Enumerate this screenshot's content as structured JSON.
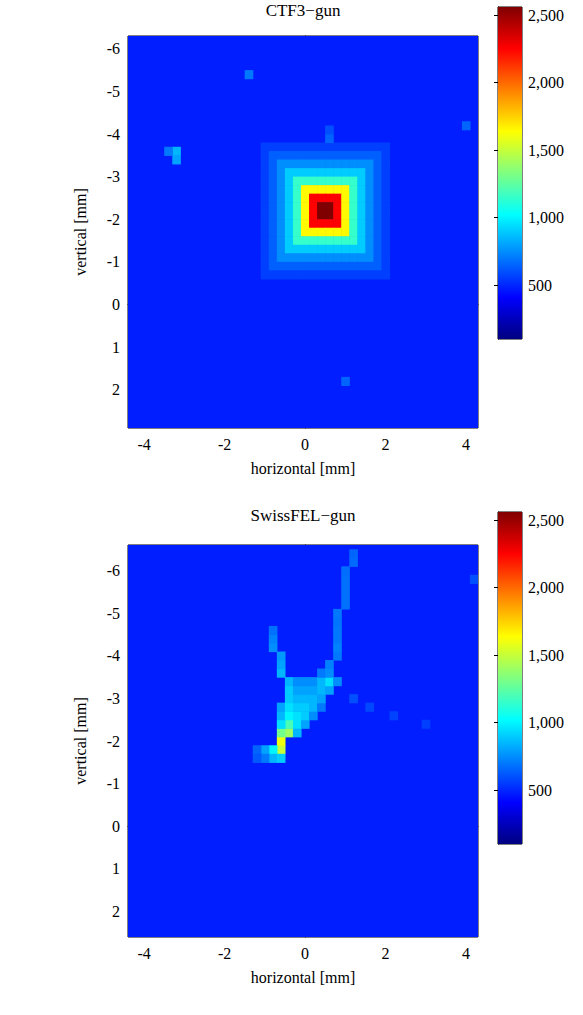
{
  "chart_data": [
    {
      "type": "heatmap",
      "title": "CTF3−gun",
      "xlabel": "horizontal [mm]",
      "ylabel": "vertical [mm]",
      "xlim": [
        -4.4,
        4.3
      ],
      "ylim": [
        2.9,
        -6.3
      ],
      "xticks": [
        -4,
        -2,
        0,
        2,
        4
      ],
      "yticks": [
        -6,
        -5,
        -4,
        -3,
        -2,
        -1,
        0,
        1,
        2
      ],
      "background": 480,
      "cell_size": 0.2,
      "x": [
        -1.0,
        -0.8,
        -0.6,
        -0.4,
        -0.2,
        0.0,
        0.2,
        0.4,
        0.6,
        0.8,
        1.0,
        1.2,
        1.4,
        1.6,
        1.8,
        2.0
      ],
      "y": [
        -3.7,
        -3.5,
        -3.3,
        -3.1,
        -2.9,
        -2.7,
        -2.5,
        -2.3,
        -2.1,
        -1.9,
        -1.7,
        -1.5,
        -1.3,
        -1.1,
        -0.9,
        -0.7
      ],
      "z": [
        [
          560,
          560,
          560,
          560,
          560,
          560,
          560,
          560,
          560,
          560,
          560,
          560,
          560,
          560,
          560,
          560
        ],
        [
          560,
          640,
          640,
          640,
          640,
          640,
          640,
          640,
          640,
          640,
          640,
          640,
          640,
          640,
          640,
          560
        ],
        [
          560,
          640,
          750,
          750,
          750,
          750,
          750,
          750,
          750,
          750,
          750,
          750,
          750,
          750,
          640,
          560
        ],
        [
          560,
          640,
          750,
          900,
          900,
          900,
          900,
          900,
          900,
          900,
          900,
          900,
          900,
          750,
          640,
          560
        ],
        [
          560,
          640,
          750,
          900,
          1150,
          1150,
          1150,
          1150,
          1150,
          1150,
          1150,
          1150,
          900,
          750,
          640,
          560
        ],
        [
          560,
          640,
          750,
          900,
          1150,
          1650,
          1650,
          1650,
          1650,
          1650,
          1650,
          1150,
          900,
          750,
          640,
          560
        ],
        [
          560,
          640,
          750,
          900,
          1150,
          1650,
          2250,
          2250,
          2250,
          2250,
          1650,
          1150,
          900,
          750,
          640,
          560
        ],
        [
          560,
          640,
          750,
          900,
          1150,
          1650,
          2250,
          2560,
          2560,
          2250,
          1650,
          1150,
          900,
          750,
          640,
          560
        ],
        [
          560,
          640,
          750,
          900,
          1150,
          1650,
          2250,
          2560,
          2560,
          2250,
          1650,
          1150,
          900,
          750,
          640,
          560
        ],
        [
          560,
          640,
          750,
          900,
          1150,
          1650,
          2250,
          2250,
          2250,
          2250,
          1650,
          1150,
          900,
          750,
          640,
          560
        ],
        [
          560,
          640,
          750,
          900,
          1150,
          1650,
          1650,
          1650,
          1650,
          1650,
          1650,
          1150,
          900,
          750,
          640,
          560
        ],
        [
          560,
          640,
          750,
          900,
          1150,
          1150,
          1150,
          1150,
          1150,
          1150,
          1150,
          1150,
          900,
          750,
          640,
          560
        ],
        [
          560,
          640,
          750,
          900,
          900,
          900,
          900,
          900,
          900,
          900,
          900,
          900,
          900,
          750,
          640,
          560
        ],
        [
          560,
          640,
          750,
          750,
          750,
          750,
          750,
          750,
          750,
          750,
          750,
          750,
          750,
          750,
          640,
          560
        ],
        [
          560,
          640,
          640,
          640,
          640,
          640,
          640,
          640,
          640,
          640,
          640,
          640,
          640,
          640,
          640,
          560
        ],
        [
          560,
          560,
          560,
          560,
          560,
          560,
          560,
          560,
          560,
          560,
          560,
          560,
          560,
          560,
          560,
          560
        ]
      ],
      "cells": [
        [
          -3.2,
          -3.6,
          850
        ],
        [
          -3.2,
          -3.4,
          800
        ],
        [
          -3.4,
          -3.6,
          700
        ],
        [
          -1.4,
          -5.4,
          700
        ],
        [
          4.0,
          -4.2,
          650
        ],
        [
          1.0,
          1.8,
          650
        ],
        [
          0.6,
          -3.9,
          650
        ],
        [
          0.6,
          -4.1,
          600
        ]
      ],
      "colorbar": {
        "range": [
          100,
          2560
        ],
        "ticks": [
          500,
          1000,
          1500,
          2000,
          2500
        ]
      }
    },
    {
      "type": "heatmap",
      "title": "SwissFEL−gun",
      "xlabel": "horizontal [mm]",
      "ylabel": "vertical [mm]",
      "xlim": [
        -4.4,
        4.3
      ],
      "ylim": [
        2.6,
        -6.6
      ],
      "xticks": [
        -4,
        -2,
        0,
        2,
        4
      ],
      "yticks": [
        -6,
        -5,
        -4,
        -3,
        -2,
        -1,
        0,
        1,
        2
      ],
      "background": 480,
      "cell_size": 0.2,
      "cells": [
        [
          -0.6,
          -1.8,
          1500
        ],
        [
          -0.6,
          -2.0,
          1600
        ],
        [
          -0.4,
          -2.2,
          1400
        ],
        [
          -0.4,
          -2.4,
          1200
        ],
        [
          -0.8,
          -1.8,
          1000
        ],
        [
          -0.8,
          -1.6,
          850
        ],
        [
          -1.0,
          -1.8,
          800
        ],
        [
          -1.0,
          -1.6,
          700
        ],
        [
          -1.2,
          -1.8,
          650
        ],
        [
          -0.6,
          -1.6,
          900
        ],
        [
          -1.2,
          -1.6,
          620
        ],
        [
          -0.6,
          -2.2,
          1300
        ],
        [
          -0.2,
          -2.2,
          850
        ],
        [
          -0.6,
          -2.4,
          950
        ],
        [
          -0.2,
          -2.4,
          950
        ],
        [
          0.0,
          -2.4,
          800
        ],
        [
          -0.6,
          -2.6,
          850
        ],
        [
          -0.4,
          -2.6,
          1000
        ],
        [
          -0.2,
          -2.6,
          950
        ],
        [
          0.0,
          -2.6,
          900
        ],
        [
          0.2,
          -2.6,
          750
        ],
        [
          -0.6,
          -2.8,
          800
        ],
        [
          -0.4,
          -2.8,
          950
        ],
        [
          -0.2,
          -2.8,
          900
        ],
        [
          0.0,
          -2.8,
          900
        ],
        [
          0.2,
          -2.8,
          850
        ],
        [
          0.4,
          -2.8,
          700
        ],
        [
          -0.4,
          -3.0,
          900
        ],
        [
          -0.2,
          -3.0,
          850
        ],
        [
          0.0,
          -3.0,
          850
        ],
        [
          0.2,
          -3.0,
          850
        ],
        [
          0.4,
          -3.0,
          800
        ],
        [
          -0.4,
          -3.2,
          900
        ],
        [
          -0.2,
          -3.2,
          800
        ],
        [
          0.0,
          -3.2,
          800
        ],
        [
          0.2,
          -3.2,
          800
        ],
        [
          0.4,
          -3.2,
          850
        ],
        [
          0.6,
          -3.2,
          800
        ],
        [
          -0.4,
          -3.4,
          850
        ],
        [
          -0.2,
          -3.4,
          750
        ],
        [
          0.0,
          -3.4,
          750
        ],
        [
          0.2,
          -3.4,
          750
        ],
        [
          0.4,
          -3.4,
          850
        ],
        [
          0.6,
          -3.4,
          950
        ],
        [
          0.8,
          -3.4,
          750
        ],
        [
          -0.6,
          -3.6,
          850
        ],
        [
          0.4,
          -3.6,
          700
        ],
        [
          0.6,
          -3.6,
          750
        ],
        [
          -0.6,
          -3.8,
          800
        ],
        [
          -0.6,
          -4.0,
          780
        ],
        [
          -0.8,
          -4.2,
          750
        ],
        [
          -0.8,
          -4.4,
          720
        ],
        [
          -0.8,
          -4.6,
          680
        ],
        [
          0.6,
          -3.8,
          720
        ],
        [
          0.8,
          -4.0,
          700
        ],
        [
          0.8,
          -4.2,
          720
        ],
        [
          0.8,
          -4.4,
          700
        ],
        [
          0.8,
          -4.6,
          700
        ],
        [
          0.8,
          -4.8,
          690
        ],
        [
          0.8,
          -5.0,
          700
        ],
        [
          1.0,
          -5.2,
          680
        ],
        [
          1.0,
          -5.4,
          680
        ],
        [
          1.0,
          -5.6,
          680
        ],
        [
          1.0,
          -5.8,
          680
        ],
        [
          1.0,
          -6.0,
          670
        ],
        [
          1.2,
          -6.2,
          660
        ],
        [
          1.2,
          -6.4,
          650
        ],
        [
          1.2,
          -3.0,
          600
        ],
        [
          1.6,
          -2.8,
          580
        ],
        [
          2.2,
          -2.6,
          570
        ],
        [
          3.0,
          -2.4,
          560
        ],
        [
          4.2,
          -5.8,
          600
        ]
      ],
      "colorbar": {
        "range": [
          100,
          2560
        ],
        "ticks": [
          500,
          1000,
          1500,
          2000,
          2500
        ]
      }
    }
  ]
}
